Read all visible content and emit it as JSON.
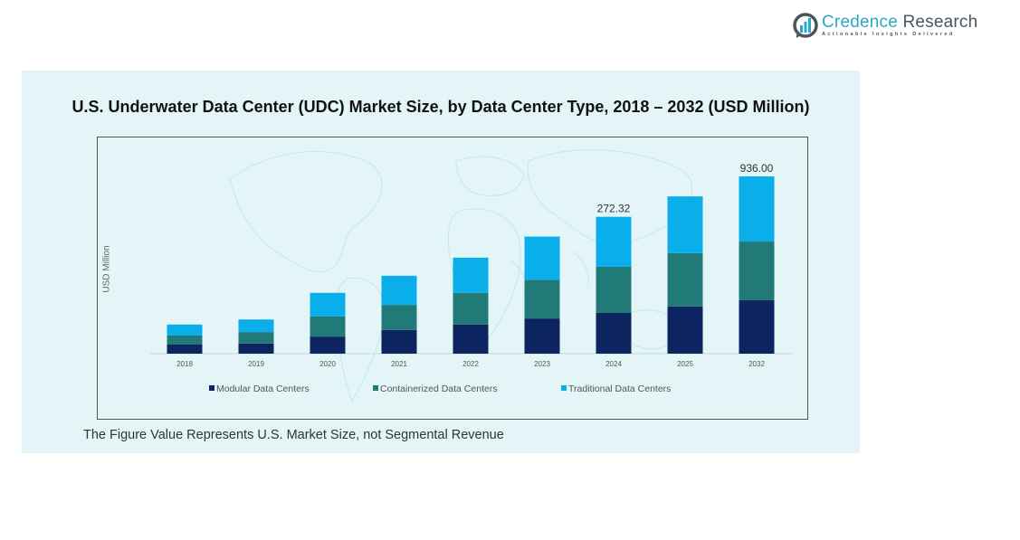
{
  "brand": {
    "name_part1": "Credence",
    "name_part2": " Research",
    "tagline": "Actionable Insights Delivered",
    "colors": {
      "primary": "#2aa8c8",
      "text": "#4a5560"
    }
  },
  "footnote": "The Figure Value Represents U.S. Market Size, not Segmental Revenue",
  "chart_data": {
    "type": "bar",
    "stacked": true,
    "title": "U.S. Underwater Data Center (UDC) Market Size, by Data Center Type, 2018 – 2032 (USD Million)",
    "xlabel": "",
    "ylabel": "USD Million",
    "categories": [
      "2018",
      "2019",
      "2020",
      "2021",
      "2022",
      "2023",
      "2024",
      "2025",
      "2032"
    ],
    "series": [
      {
        "name": "Modular Data Centers",
        "color": "#0c2460",
        "values": [
          18,
          20,
          34,
          47,
          58,
          70,
          81,
          94,
          282
        ]
      },
      {
        "name": "Containerized Data Centers",
        "color": "#217a78",
        "values": [
          18,
          23,
          40,
          50,
          63,
          77,
          92,
          106,
          310
        ]
      },
      {
        "name": "Traditional Data Centers",
        "color": "#0aaeea",
        "values": [
          22,
          25,
          47,
          58,
          70,
          86,
          99.32,
          113,
          344
        ]
      }
    ],
    "data_labels": [
      {
        "category": "2024",
        "text": "272.32"
      },
      {
        "category": "2032",
        "text": "936.00"
      }
    ],
    "grid": false,
    "y_axis_visible": false,
    "legend": "bottom-center",
    "note": "2032 bar is drawn on a compressed (broken) scale"
  }
}
